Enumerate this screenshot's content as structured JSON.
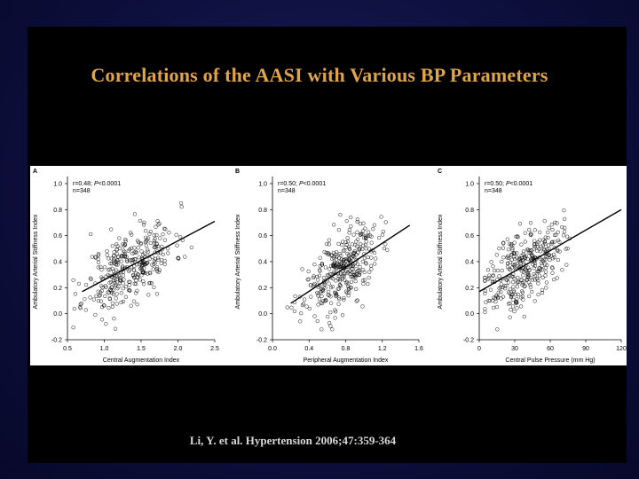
{
  "slide": {
    "title": "Correlations of the AASI with Various BP Parameters",
    "citation": "Li, Y. et al. Hypertension 2006;47:359-364",
    "colors": {
      "background": "#0d0f3c",
      "panel": "#000000",
      "title": "#e0a44a",
      "citation": "#d8d8d8"
    }
  },
  "chart_data": [
    {
      "type": "scatter",
      "panel_label": "A",
      "xlabel": "Central Augmentation Index",
      "ylabel": "Ambulatory Arterial Stiffness Index",
      "xlim": [
        0.5,
        2.5
      ],
      "ylim": [
        -0.2,
        1.0
      ],
      "xticks": [
        0.5,
        1.0,
        1.5,
        2.0,
        2.5
      ],
      "xtick_labels": [
        "0.5",
        "1.0",
        "1.5",
        "2.0",
        "2.5"
      ],
      "yticks": [
        -0.2,
        0.0,
        0.2,
        0.4,
        0.6,
        0.8,
        1.0
      ],
      "ytick_labels": [
        "-0.2",
        "0.0",
        "0.2",
        "0.4",
        "0.6",
        "0.8",
        "1.0"
      ],
      "stats_r": "r=0.48; ",
      "stats_p_label": "P",
      "stats_p_value": "<0.0001",
      "stats_n": "n=348",
      "regression": {
        "x": [
          0.7,
          2.5
        ],
        "y": [
          0.17,
          0.71
        ]
      },
      "x_center": 1.35,
      "x_spread": 0.3,
      "n": 348,
      "seed": 11
    },
    {
      "type": "scatter",
      "panel_label": "B",
      "xlabel": "Peripheral Augmentation Index",
      "ylabel": "Ambulatory Arterial Stiffness Index",
      "xlim": [
        0.0,
        1.6
      ],
      "ylim": [
        -0.2,
        1.0
      ],
      "xticks": [
        0.0,
        0.4,
        0.8,
        1.2,
        1.6
      ],
      "xtick_labels": [
        "0.0",
        "0.4",
        "0.8",
        "1.2",
        "1.6"
      ],
      "yticks": [
        -0.2,
        0.0,
        0.2,
        0.4,
        0.6,
        0.8,
        1.0
      ],
      "ytick_labels": [
        "-0.2",
        "0.0",
        "0.2",
        "0.4",
        "0.6",
        "0.8",
        "1.0"
      ],
      "stats_r": "r=0.50; ",
      "stats_p_label": "P",
      "stats_p_value": "<0.0001",
      "stats_n": "n=348",
      "regression": {
        "x": [
          0.2,
          1.5
        ],
        "y": [
          0.08,
          0.68
        ]
      },
      "x_center": 0.75,
      "x_spread": 0.2,
      "n": 348,
      "seed": 23
    },
    {
      "type": "scatter",
      "panel_label": "C",
      "xlabel": "Central Pulse Pressure (mm Hg)",
      "ylabel": "Ambulatory Arterial Stiffness Index",
      "xlim": [
        0,
        120
      ],
      "ylim": [
        -0.2,
        1.0
      ],
      "xticks": [
        0,
        30,
        60,
        90,
        120
      ],
      "xtick_labels": [
        "0",
        "30",
        "60",
        "90",
        "120"
      ],
      "yticks": [
        -0.2,
        0.0,
        0.2,
        0.4,
        0.6,
        0.8,
        1.0
      ],
      "ytick_labels": [
        "-0.2",
        "0.0",
        "0.2",
        "0.4",
        "0.6",
        "0.8",
        "1.0"
      ],
      "stats_r": "r=0.50; ",
      "stats_p_label": "P",
      "stats_p_value": "<0.0001",
      "stats_n": "n=348",
      "regression": {
        "x": [
          0,
          120
        ],
        "y": [
          0.17,
          0.8
        ]
      },
      "x_center": 38,
      "x_spread": 16,
      "n": 348,
      "seed": 37
    }
  ]
}
